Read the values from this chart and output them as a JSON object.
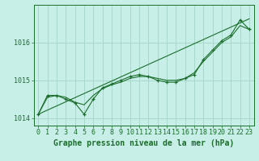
{
  "title": "Graphe pression niveau de la mer (hPa)",
  "background_color": "#c8eee8",
  "grid_color": "#a8d8cc",
  "line_color": "#1a6e2a",
  "marker_color": "#1a6e2a",
  "hours": [
    0,
    1,
    2,
    3,
    4,
    5,
    6,
    7,
    8,
    9,
    10,
    11,
    12,
    13,
    14,
    15,
    16,
    17,
    18,
    19,
    20,
    21,
    22,
    23
  ],
  "pressure": [
    1014.1,
    1014.6,
    1014.6,
    1014.5,
    1014.4,
    1014.1,
    1014.5,
    1014.8,
    1014.9,
    1015.0,
    1015.1,
    1015.15,
    1015.1,
    1015.0,
    1014.95,
    1014.95,
    1015.05,
    1015.15,
    1015.55,
    1015.8,
    1016.05,
    1016.2,
    1016.6,
    1016.35
  ],
  "smooth_pressure": [
    1014.1,
    1014.55,
    1014.6,
    1014.55,
    1014.42,
    1014.35,
    1014.6,
    1014.78,
    1014.88,
    1014.95,
    1015.05,
    1015.1,
    1015.1,
    1015.05,
    1015.0,
    1015.0,
    1015.05,
    1015.2,
    1015.5,
    1015.75,
    1016.0,
    1016.15,
    1016.45,
    1016.35
  ],
  "linear_pressure": [
    1014.1,
    1014.21,
    1014.32,
    1014.43,
    1014.54,
    1014.65,
    1014.76,
    1014.87,
    1014.98,
    1015.09,
    1015.2,
    1015.31,
    1015.42,
    1015.53,
    1015.64,
    1015.75,
    1015.86,
    1015.97,
    1016.08,
    1016.19,
    1016.3,
    1016.41,
    1016.52,
    1016.63
  ],
  "ylim": [
    1013.8,
    1017.0
  ],
  "yticks": [
    1014,
    1015,
    1016
  ],
  "xlim": [
    -0.5,
    23.5
  ],
  "xlabel_fontsize": 6.0,
  "title_fontsize": 7.0,
  "tick_fontsize": 6.0
}
